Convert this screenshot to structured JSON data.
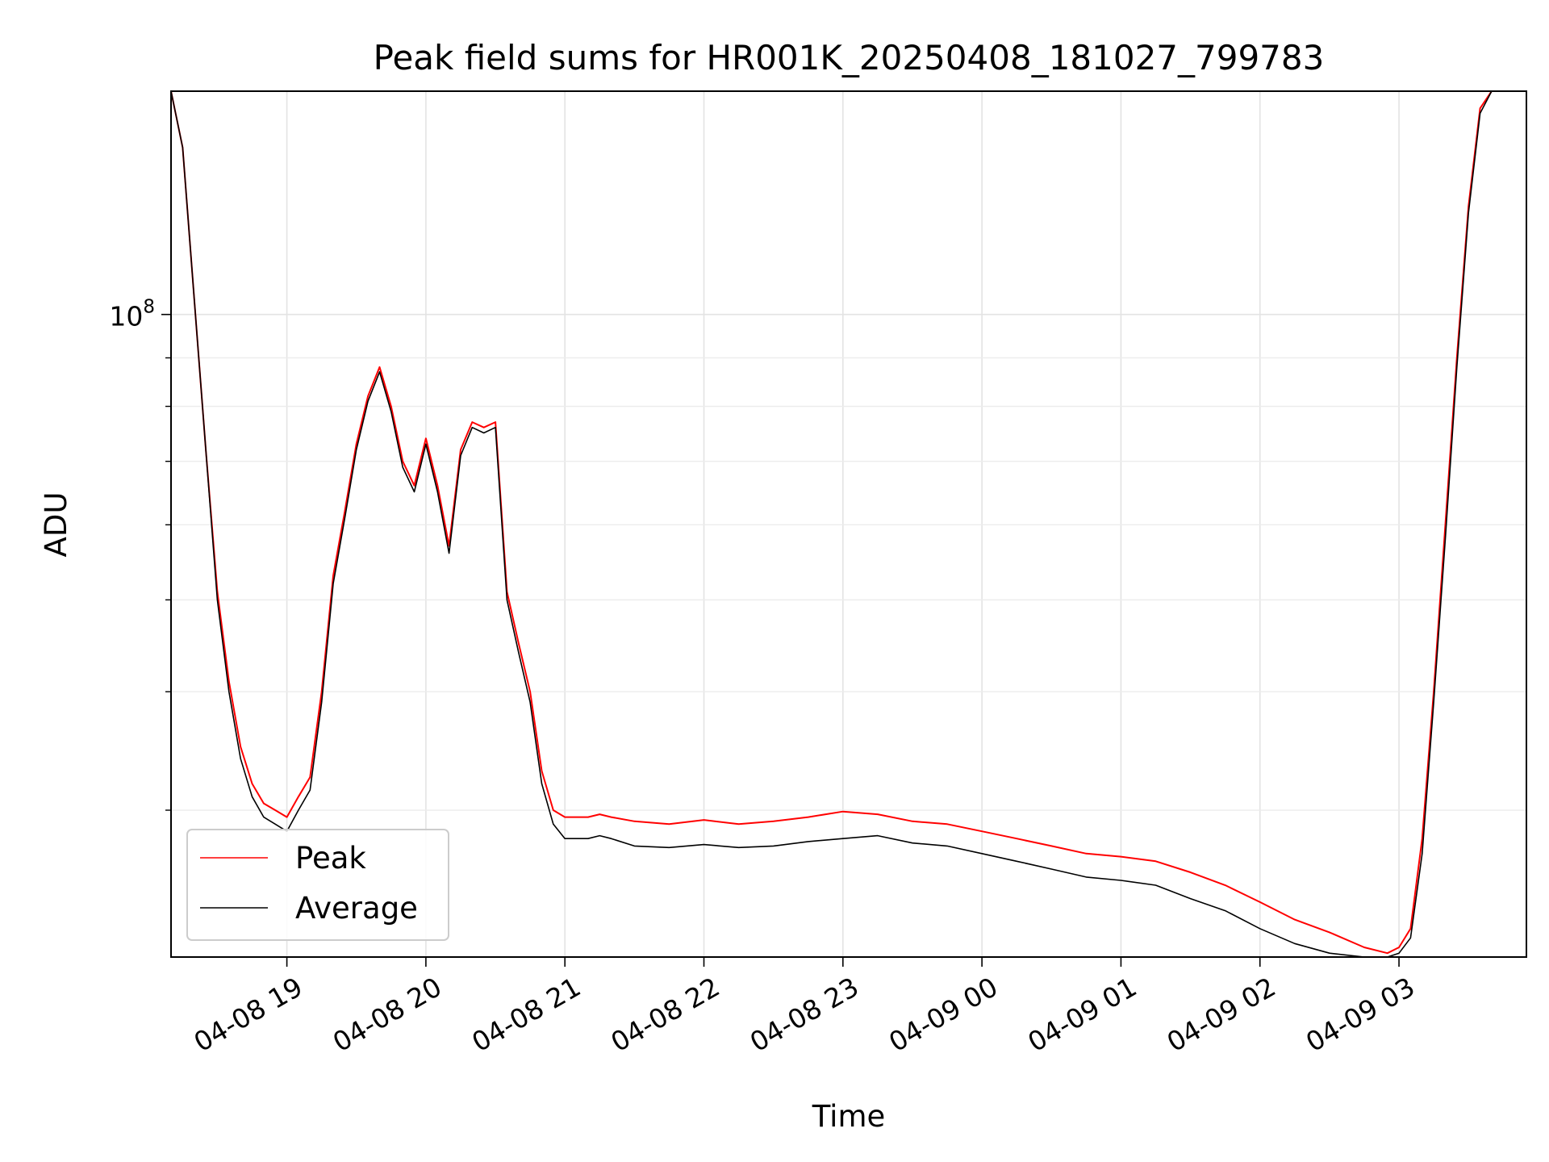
{
  "chart_data": {
    "type": "line",
    "title": "Peak field sums for HR001K_20250408_181027_799783",
    "xlabel": "Time",
    "ylabel": "ADU",
    "yscale": "log",
    "grid": true,
    "legend_position": "lower-left",
    "x_ticks": [
      "04-08 19",
      "04-08 20",
      "04-08 21",
      "04-08 22",
      "04-08 23",
      "04-09 00",
      "04-09 01",
      "04-09 02",
      "04-09 03"
    ],
    "y_tick_label": "10^8",
    "x_range": [
      "2025-04-08 18:10",
      "2025-04-09 03:55"
    ],
    "ylim": [
      21000000,
      172000000
    ],
    "series": [
      {
        "name": "Peak",
        "color": "#ff0000",
        "x": [
          "2025-04-08 18:10",
          "2025-04-08 18:15",
          "2025-04-08 18:20",
          "2025-04-08 18:25",
          "2025-04-08 18:30",
          "2025-04-08 18:35",
          "2025-04-08 18:40",
          "2025-04-08 18:45",
          "2025-04-08 18:50",
          "2025-04-08 18:55",
          "2025-04-08 19:00",
          "2025-04-08 19:05",
          "2025-04-08 19:10",
          "2025-04-08 19:15",
          "2025-04-08 19:20",
          "2025-04-08 19:25",
          "2025-04-08 19:30",
          "2025-04-08 19:35",
          "2025-04-08 19:40",
          "2025-04-08 19:45",
          "2025-04-08 19:50",
          "2025-04-08 19:55",
          "2025-04-08 20:00",
          "2025-04-08 20:05",
          "2025-04-08 20:10",
          "2025-04-08 20:15",
          "2025-04-08 20:20",
          "2025-04-08 20:25",
          "2025-04-08 20:30",
          "2025-04-08 20:35",
          "2025-04-08 20:40",
          "2025-04-08 20:45",
          "2025-04-08 20:50",
          "2025-04-08 20:55",
          "2025-04-08 21:00",
          "2025-04-08 21:05",
          "2025-04-08 21:10",
          "2025-04-08 21:15",
          "2025-04-08 21:20",
          "2025-04-08 21:30",
          "2025-04-08 21:45",
          "2025-04-08 22:00",
          "2025-04-08 22:15",
          "2025-04-08 22:30",
          "2025-04-08 22:45",
          "2025-04-08 23:00",
          "2025-04-08 23:15",
          "2025-04-08 23:30",
          "2025-04-08 23:45",
          "2025-04-09 00:00",
          "2025-04-09 00:15",
          "2025-04-09 00:30",
          "2025-04-09 00:45",
          "2025-04-09 01:00",
          "2025-04-09 01:15",
          "2025-04-09 01:30",
          "2025-04-09 01:45",
          "2025-04-09 02:00",
          "2025-04-09 02:15",
          "2025-04-09 02:30",
          "2025-04-09 02:45",
          "2025-04-09 02:55",
          "2025-04-09 03:00",
          "2025-04-09 03:05",
          "2025-04-09 03:10",
          "2025-04-09 03:15",
          "2025-04-09 03:20",
          "2025-04-09 03:25",
          "2025-04-09 03:30",
          "2025-04-09 03:35",
          "2025-04-09 03:40",
          "2025-04-09 03:45",
          "2025-04-09 03:50",
          "2025-04-09 03:55"
        ],
        "y": [
          172000000,
          150000000,
          104000000,
          72000000,
          51000000,
          41000000,
          35000000,
          32000000,
          30500000,
          30000000,
          29500000,
          31000000,
          32500000,
          40000000,
          53000000,
          62000000,
          73000000,
          82000000,
          88000000,
          80000000,
          70000000,
          66000000,
          74000000,
          66000000,
          57000000,
          72000000,
          77000000,
          76000000,
          77000000,
          51000000,
          45000000,
          40000000,
          33000000,
          30000000,
          29500000,
          29500000,
          29500000,
          29700000,
          29500000,
          29200000,
          29000000,
          29300000,
          29000000,
          29200000,
          29500000,
          29900000,
          29700000,
          29200000,
          29000000,
          28500000,
          28000000,
          27500000,
          27000000,
          26800000,
          26500000,
          25800000,
          25000000,
          24000000,
          23000000,
          22300000,
          21500000,
          21200000,
          21500000,
          22500000,
          28000000,
          40000000,
          60000000,
          90000000,
          130000000,
          165000000,
          172000000,
          172000000,
          172000000,
          172000000
        ]
      },
      {
        "name": "Average",
        "color": "#000000",
        "x": [
          "2025-04-08 18:10",
          "2025-04-08 18:15",
          "2025-04-08 18:20",
          "2025-04-08 18:25",
          "2025-04-08 18:30",
          "2025-04-08 18:35",
          "2025-04-08 18:40",
          "2025-04-08 18:45",
          "2025-04-08 18:50",
          "2025-04-08 18:55",
          "2025-04-08 19:00",
          "2025-04-08 19:05",
          "2025-04-08 19:10",
          "2025-04-08 19:15",
          "2025-04-08 19:20",
          "2025-04-08 19:25",
          "2025-04-08 19:30",
          "2025-04-08 19:35",
          "2025-04-08 19:40",
          "2025-04-08 19:45",
          "2025-04-08 19:50",
          "2025-04-08 19:55",
          "2025-04-08 20:00",
          "2025-04-08 20:05",
          "2025-04-08 20:10",
          "2025-04-08 20:15",
          "2025-04-08 20:20",
          "2025-04-08 20:25",
          "2025-04-08 20:30",
          "2025-04-08 20:35",
          "2025-04-08 20:40",
          "2025-04-08 20:45",
          "2025-04-08 20:50",
          "2025-04-08 20:55",
          "2025-04-08 21:00",
          "2025-04-08 21:05",
          "2025-04-08 21:10",
          "2025-04-08 21:15",
          "2025-04-08 21:20",
          "2025-04-08 21:30",
          "2025-04-08 21:45",
          "2025-04-08 22:00",
          "2025-04-08 22:15",
          "2025-04-08 22:30",
          "2025-04-08 22:45",
          "2025-04-08 23:00",
          "2025-04-08 23:15",
          "2025-04-08 23:30",
          "2025-04-08 23:45",
          "2025-04-09 00:00",
          "2025-04-09 00:15",
          "2025-04-09 00:30",
          "2025-04-09 00:45",
          "2025-04-09 01:00",
          "2025-04-09 01:15",
          "2025-04-09 01:30",
          "2025-04-09 01:45",
          "2025-04-09 02:00",
          "2025-04-09 02:15",
          "2025-04-09 02:30",
          "2025-04-09 02:45",
          "2025-04-09 02:55",
          "2025-04-09 03:00",
          "2025-04-09 03:05",
          "2025-04-09 03:10",
          "2025-04-09 03:15",
          "2025-04-09 03:20",
          "2025-04-09 03:25",
          "2025-04-09 03:30",
          "2025-04-09 03:35",
          "2025-04-09 03:40",
          "2025-04-09 03:45",
          "2025-04-09 03:50",
          "2025-04-09 03:55"
        ],
        "y": [
          172000000,
          150000000,
          104000000,
          72000000,
          50000000,
          40000000,
          34000000,
          31000000,
          29500000,
          29000000,
          28500000,
          30000000,
          31500000,
          39000000,
          52000000,
          61000000,
          72000000,
          81000000,
          87000000,
          79000000,
          69000000,
          65000000,
          73000000,
          65000000,
          56000000,
          71000000,
          76000000,
          75000000,
          76000000,
          50000000,
          44000000,
          39000000,
          32000000,
          29000000,
          28000000,
          28000000,
          28000000,
          28200000,
          28000000,
          27500000,
          27400000,
          27600000,
          27400000,
          27500000,
          27800000,
          28000000,
          28200000,
          27700000,
          27500000,
          27000000,
          26500000,
          26000000,
          25500000,
          25300000,
          25000000,
          24200000,
          23500000,
          22500000,
          21700000,
          21200000,
          21000000,
          21000000,
          21200000,
          22000000,
          27000000,
          39000000,
          58000000,
          88000000,
          128000000,
          163000000,
          172000000,
          172000000,
          172000000,
          172000000
        ]
      }
    ]
  }
}
